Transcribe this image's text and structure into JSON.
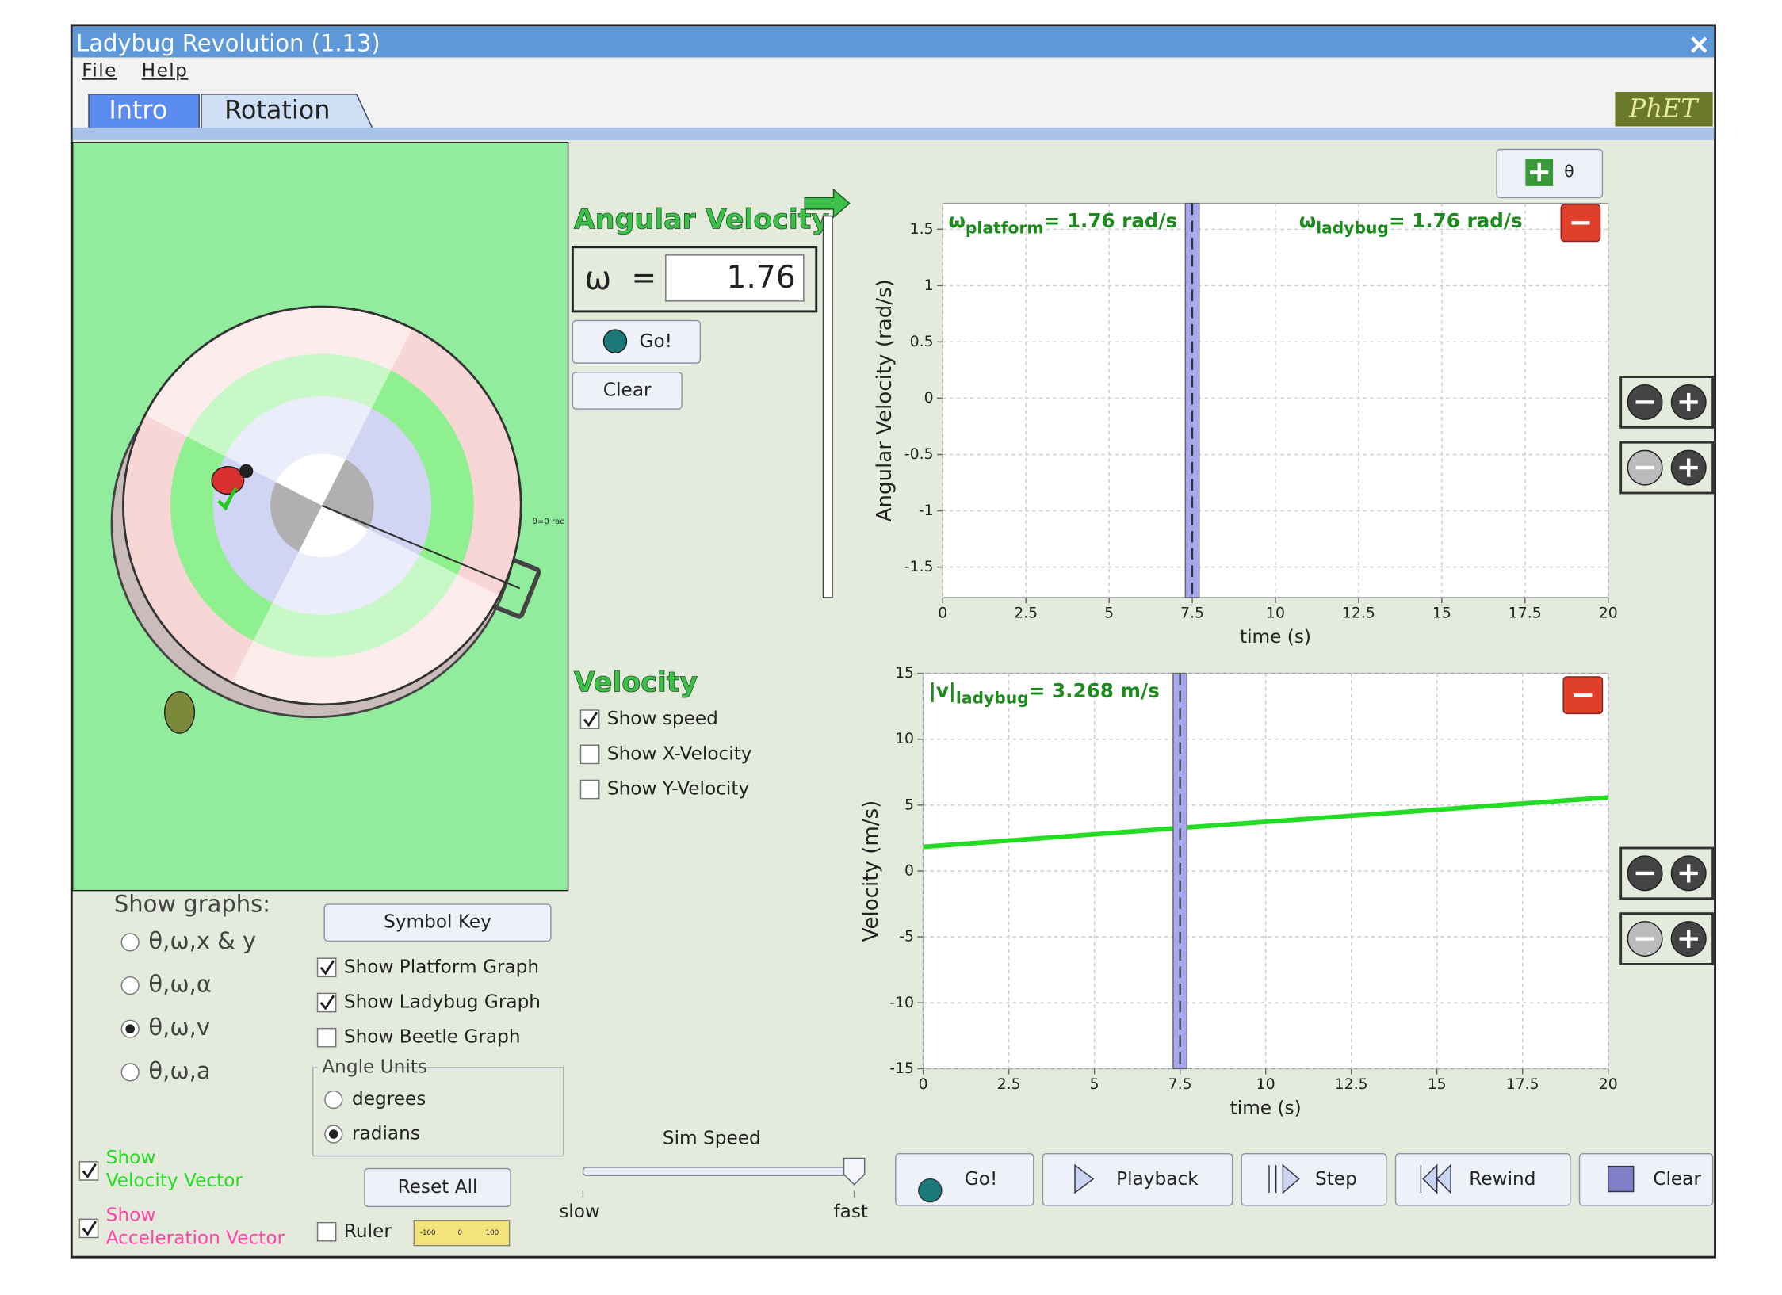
{
  "window": {
    "title": "Ladybug Revolution (1.13)",
    "menu": [
      "File",
      "Help"
    ],
    "tabs": [
      "Intro",
      "Rotation"
    ],
    "logo": "PhET"
  },
  "angular_velocity": {
    "heading": "Angular Velocity",
    "symbol": "ω",
    "equals": "=",
    "value": "1.76",
    "go": "Go!",
    "clear": "Clear"
  },
  "platform": {
    "angle_label": "θ=0 rad"
  },
  "velocity": {
    "heading": "Velocity",
    "options": [
      {
        "label": "Show speed",
        "checked": true
      },
      {
        "label": "Show X-Velocity",
        "checked": false
      },
      {
        "label": "Show Y-Velocity",
        "checked": false
      }
    ]
  },
  "show_graphs": {
    "heading": "Show graphs:",
    "options": [
      {
        "label": "θ,ω,x & y",
        "selected": false
      },
      {
        "label": "θ,ω,α",
        "selected": false
      },
      {
        "label": "θ,ω,v",
        "selected": true
      },
      {
        "label": "θ,ω,a",
        "selected": false
      }
    ]
  },
  "symbol_key": "Symbol Key",
  "graph_options": [
    {
      "label": "Show Platform Graph",
      "checked": true
    },
    {
      "label": "Show Ladybug Graph",
      "checked": true
    },
    {
      "label": "Show Beetle Graph",
      "checked": false
    }
  ],
  "angle_units": {
    "heading": "Angle Units",
    "options": [
      {
        "label": "degrees",
        "selected": false
      },
      {
        "label": "radians",
        "selected": true
      }
    ]
  },
  "vectors": [
    {
      "lines": [
        "Show",
        "Velocity Vector"
      ],
      "checked": true,
      "color": "#22dd22"
    },
    {
      "lines": [
        "Show",
        "Acceleration Vector"
      ],
      "checked": true,
      "color": "#ff44aa"
    }
  ],
  "reset_all": "Reset All",
  "ruler": {
    "label": "Ruler",
    "checked": false,
    "scale": [
      "-100",
      "0",
      "100"
    ]
  },
  "sim_speed": {
    "heading": "Sim Speed",
    "min_label": "slow",
    "max_label": "fast"
  },
  "playback": [
    "Go!",
    "Playback",
    "Step",
    "Rewind",
    "Clear"
  ],
  "theta_button": "θ",
  "chart_data": [
    {
      "type": "line",
      "ylabel": "Angular Velocity (rad/s)",
      "xlabel": "time (s)",
      "xlim": [
        0,
        20
      ],
      "xticks": [
        0,
        2.5,
        5,
        7.5,
        10,
        12.5,
        15,
        17.5,
        20
      ],
      "ylim": [
        -1.77,
        1.73
      ],
      "yticks": [
        -1.5,
        -1,
        -0.5,
        0,
        0.5,
        1,
        1.5
      ],
      "grid": true,
      "cursor": 7.5,
      "annotations": [
        {
          "symbol": "ω",
          "subscript": "platform",
          "text": "= 1.76 rad/s"
        },
        {
          "symbol": "ω",
          "subscript": "ladybug",
          "text": "= 1.76 rad/s"
        }
      ]
    },
    {
      "type": "line",
      "ylabel": "Velocity (m/s)",
      "xlabel": "time (s)",
      "xlim": [
        0,
        20
      ],
      "xticks": [
        0,
        2.5,
        5,
        7.5,
        10,
        12.5,
        15,
        17.5,
        20
      ],
      "ylim": [
        -15,
        15
      ],
      "yticks": [
        -15,
        -10,
        -5,
        0,
        5,
        10,
        15
      ],
      "grid": true,
      "cursor": 7.5,
      "annotations": [
        {
          "symbol": "|v|",
          "subscript": "ladybug",
          "text": "= 3.268 m/s"
        }
      ],
      "series": [
        {
          "name": "ladybug speed",
          "color": "#22dd22",
          "x": [
            0,
            7.5,
            20
          ],
          "values": [
            1.83,
            3.268,
            5.58
          ]
        }
      ]
    }
  ]
}
